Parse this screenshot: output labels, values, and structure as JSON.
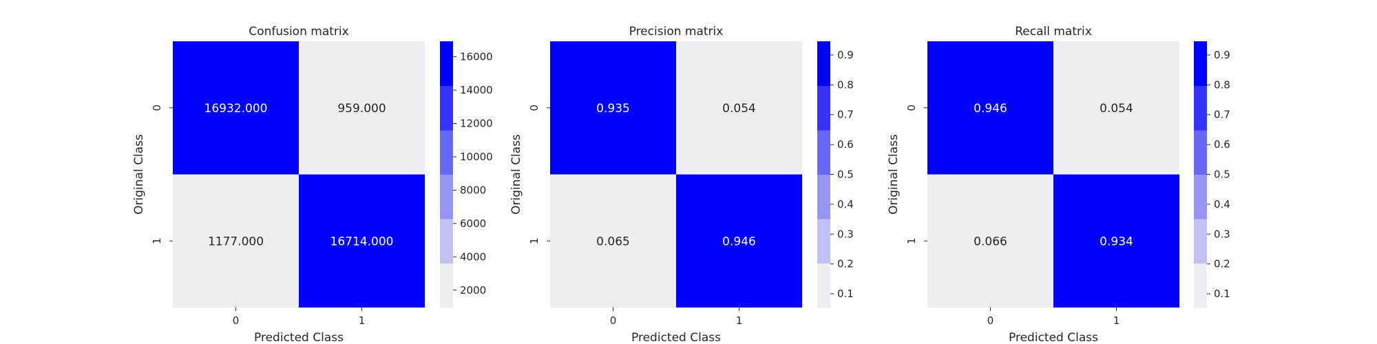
{
  "colors": {
    "low": "#eeeef2",
    "high": "#0000ff",
    "text_dark": "#262626",
    "text_light": "#ffffff",
    "colorbar_bands": [
      "#eeeef2",
      "#c1c1f4",
      "#9595f6",
      "#6767f8",
      "#3333fb",
      "#0000ff"
    ]
  },
  "chart_data": [
    {
      "type": "heatmap",
      "title": "Confusion matrix",
      "xlabel": "Predicted Class",
      "ylabel": "Original Class",
      "x_categories": [
        "0",
        "1"
      ],
      "y_categories": [
        "0",
        "1"
      ],
      "values": [
        [
          16932.0,
          959.0
        ],
        [
          1177.0,
          16714.0
        ]
      ],
      "cell_labels": [
        [
          "16932.000",
          "959.000"
        ],
        [
          "1177.000",
          "16714.000"
        ]
      ],
      "colorbar": {
        "range": [
          959,
          16932
        ],
        "ticks": [
          2000,
          4000,
          6000,
          8000,
          10000,
          12000,
          14000,
          16000
        ],
        "tick_labels": [
          "2000",
          "4000",
          "6000",
          "8000",
          "10000",
          "12000",
          "14000",
          "16000"
        ]
      }
    },
    {
      "type": "heatmap",
      "title": "Precision matrix",
      "xlabel": "Predicted Class",
      "ylabel": "Original Class",
      "x_categories": [
        "0",
        "1"
      ],
      "y_categories": [
        "0",
        "1"
      ],
      "values": [
        [
          0.935,
          0.054
        ],
        [
          0.065,
          0.946
        ]
      ],
      "cell_labels": [
        [
          "0.935",
          "0.054"
        ],
        [
          "0.065",
          "0.946"
        ]
      ],
      "colorbar": {
        "range": [
          0.054,
          0.946
        ],
        "ticks": [
          0.1,
          0.2,
          0.3,
          0.4,
          0.5,
          0.6,
          0.7,
          0.8,
          0.9
        ],
        "tick_labels": [
          "0.1",
          "0.2",
          "0.3",
          "0.4",
          "0.5",
          "0.6",
          "0.7",
          "0.8",
          "0.9"
        ]
      }
    },
    {
      "type": "heatmap",
      "title": "Recall matrix",
      "xlabel": "Predicted Class",
      "ylabel": "Original Class",
      "x_categories": [
        "0",
        "1"
      ],
      "y_categories": [
        "0",
        "1"
      ],
      "values": [
        [
          0.946,
          0.054
        ],
        [
          0.066,
          0.934
        ]
      ],
      "cell_labels": [
        [
          "0.946",
          "0.054"
        ],
        [
          "0.066",
          "0.934"
        ]
      ],
      "colorbar": {
        "range": [
          0.054,
          0.946
        ],
        "ticks": [
          0.1,
          0.2,
          0.3,
          0.4,
          0.5,
          0.6,
          0.7,
          0.8,
          0.9
        ],
        "tick_labels": [
          "0.1",
          "0.2",
          "0.3",
          "0.4",
          "0.5",
          "0.6",
          "0.7",
          "0.8",
          "0.9"
        ]
      }
    }
  ]
}
